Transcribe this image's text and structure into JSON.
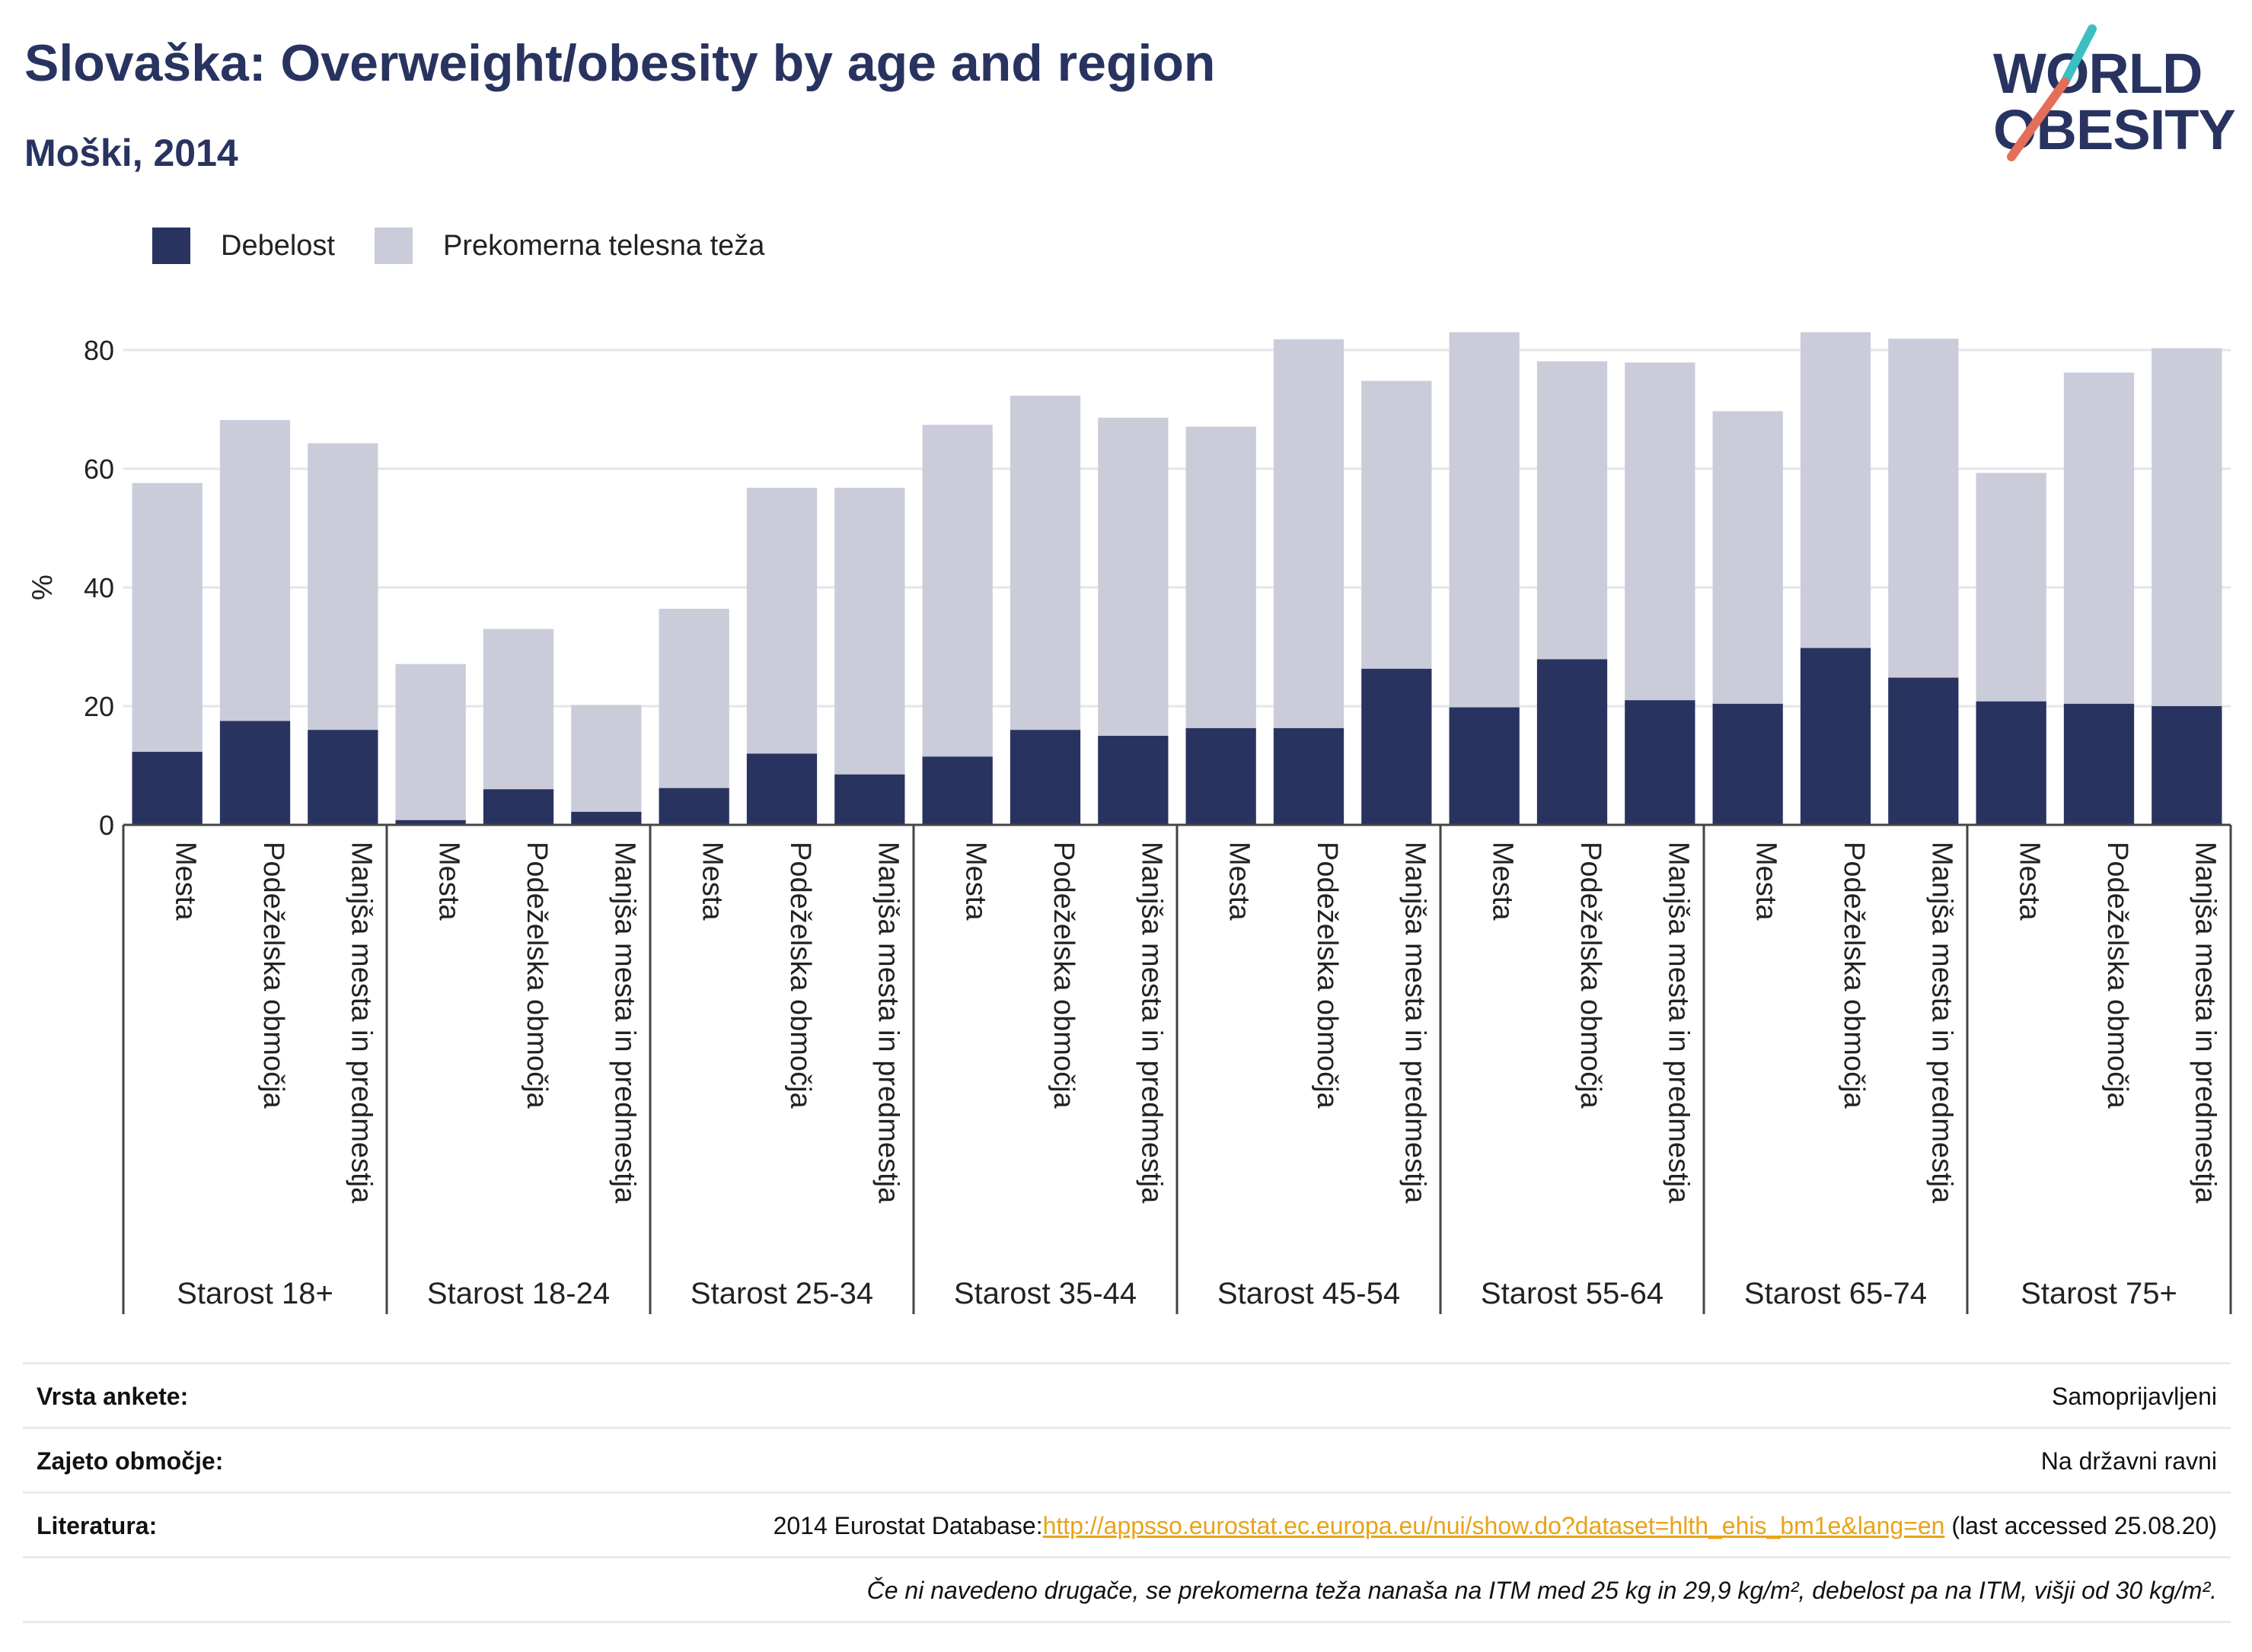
{
  "title": "Slovaška: Overweight/obesity by age and region",
  "subtitle": "Moški, 2014",
  "logo": {
    "line1": "WORLD",
    "line2": "OBESITY"
  },
  "colors": {
    "obesity": "#283360",
    "overweight": "#caccd9",
    "accent_teal": "#3dbfc1",
    "accent_coral": "#e46e59"
  },
  "chart_data": {
    "type": "bar",
    "stacked": true,
    "ylabel": "%",
    "ylim": [
      0,
      90
    ],
    "yticks": [
      0,
      20,
      40,
      60,
      80
    ],
    "grid": true,
    "legend_position": "top-left",
    "groups": [
      "Starost 18+",
      "Starost 18-24",
      "Starost 25-34",
      "Starost 35-44",
      "Starost 45-54",
      "Starost 55-64",
      "Starost 65-74",
      "Starost 75+"
    ],
    "categories": [
      "Mesta",
      "Podeželska območja",
      "Manjša mesta in predmestja"
    ],
    "series": [
      {
        "name": "Debelost",
        "values": [
          [
            12.3,
            17.5,
            16.0
          ],
          [
            0.8,
            6.0,
            2.2
          ],
          [
            6.2,
            12.0,
            8.5
          ],
          [
            11.5,
            16.0,
            15.0
          ],
          [
            16.3,
            16.3,
            26.3
          ],
          [
            19.8,
            27.9,
            21.0
          ],
          [
            20.4,
            29.8,
            24.8
          ],
          [
            20.8,
            20.4,
            20.0
          ]
        ]
      },
      {
        "name": "Prekomerna telesna teža",
        "values": [
          [
            45.3,
            50.7,
            48.3
          ],
          [
            26.3,
            27.0,
            18.0
          ],
          [
            30.2,
            44.8,
            48.3
          ],
          [
            55.9,
            56.3,
            53.6
          ],
          [
            50.8,
            65.5,
            48.5
          ],
          [
            63.2,
            50.2,
            56.9
          ],
          [
            49.3,
            53.2,
            57.1
          ],
          [
            38.5,
            55.8,
            60.3
          ]
        ]
      }
    ]
  },
  "footer": {
    "survey_type": {
      "label": "Vrsta ankete:",
      "value": "Samoprijavljeni"
    },
    "coverage": {
      "label": "Zajeto območje:",
      "value": "Na državni ravni"
    },
    "reference": {
      "label": "Literatura:",
      "prefix": "2014 Eurostat Database:",
      "link": "http://appsso.eurostat.ec.europa.eu/nui/show.do?dataset=hlth_ehis_bm1e&lang=en",
      "suffix": " (last accessed 25.08.20)"
    },
    "note": "Če ni navedeno drugače, se prekomerna teža nanaša na ITM med 25 kg in 29,9 kg/m², debelost pa na ITM, višji od 30 kg/m²."
  }
}
